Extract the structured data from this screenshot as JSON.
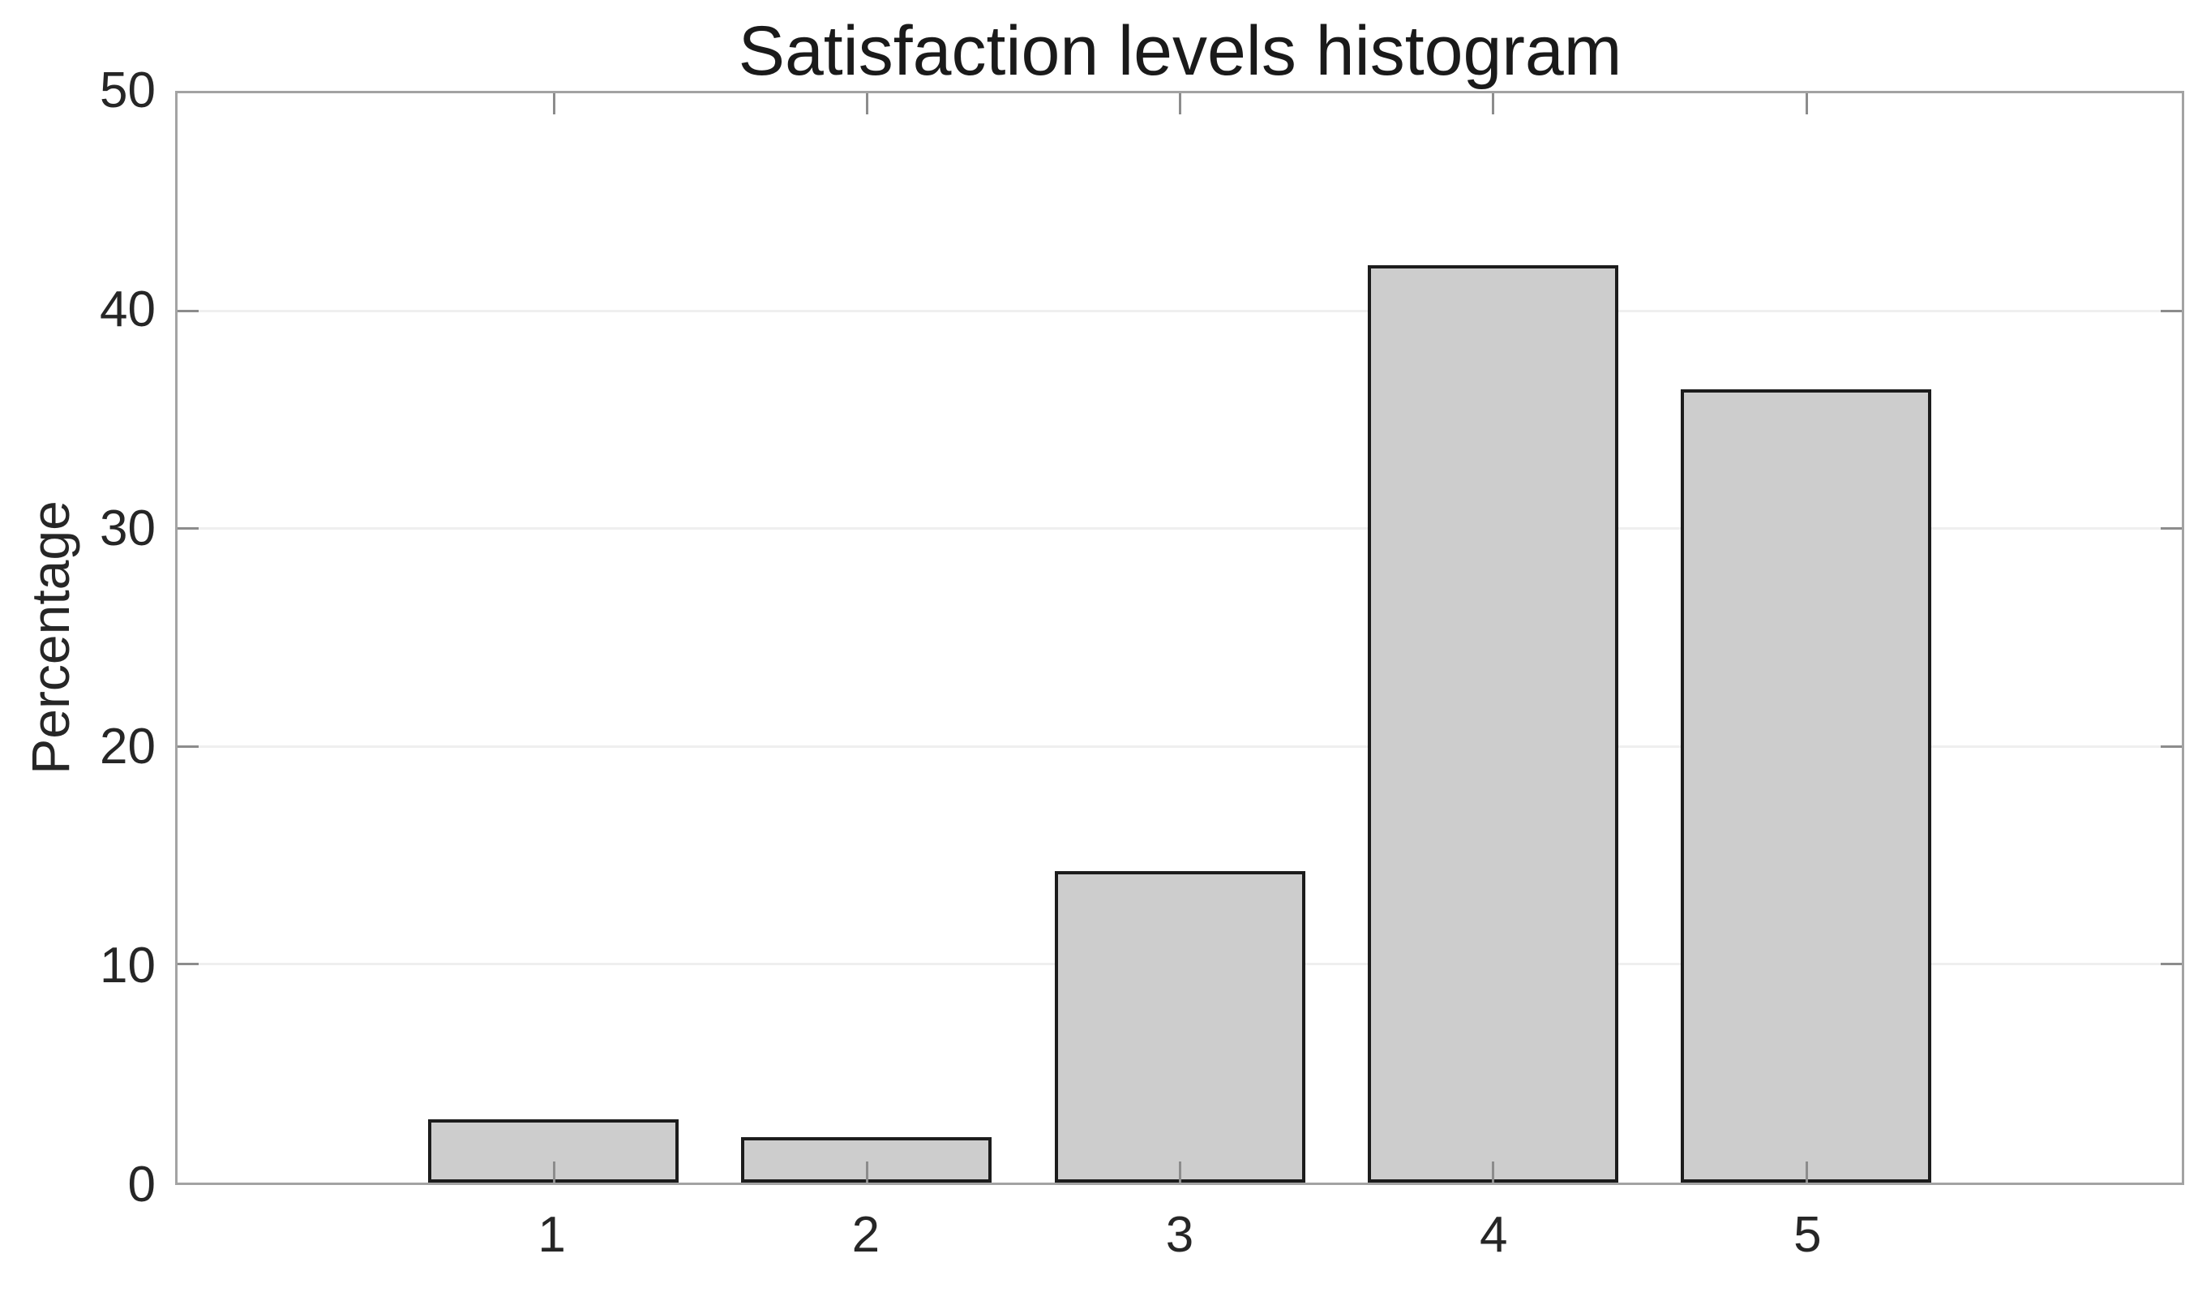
{
  "chart_data": {
    "type": "bar",
    "title": "Satisfaction levels histogram",
    "xlabel": "",
    "ylabel": "Percentage",
    "categories": [
      "1",
      "2",
      "3",
      "4",
      "5"
    ],
    "x": [
      1,
      2,
      3,
      4,
      5
    ],
    "values": [
      2.9,
      2.1,
      14.3,
      42.1,
      36.4
    ],
    "bar_width": 0.8,
    "xlim": [
      -0.2,
      6.2
    ],
    "ylim": [
      0,
      50
    ],
    "yticks": [
      0,
      10,
      20,
      30,
      40,
      50
    ],
    "ytick_labels": [
      "0",
      "10",
      "20",
      "30",
      "40",
      "50"
    ],
    "grid": "horizontal",
    "legend": "none",
    "colors": {
      "bar_fill": "#cdcdcd",
      "bar_edge": "#1c1c1c",
      "axis_box": "#a3a3a3",
      "tick_mark": "#8c8c8c",
      "gridline": "#efefef",
      "text": "#262626"
    }
  }
}
